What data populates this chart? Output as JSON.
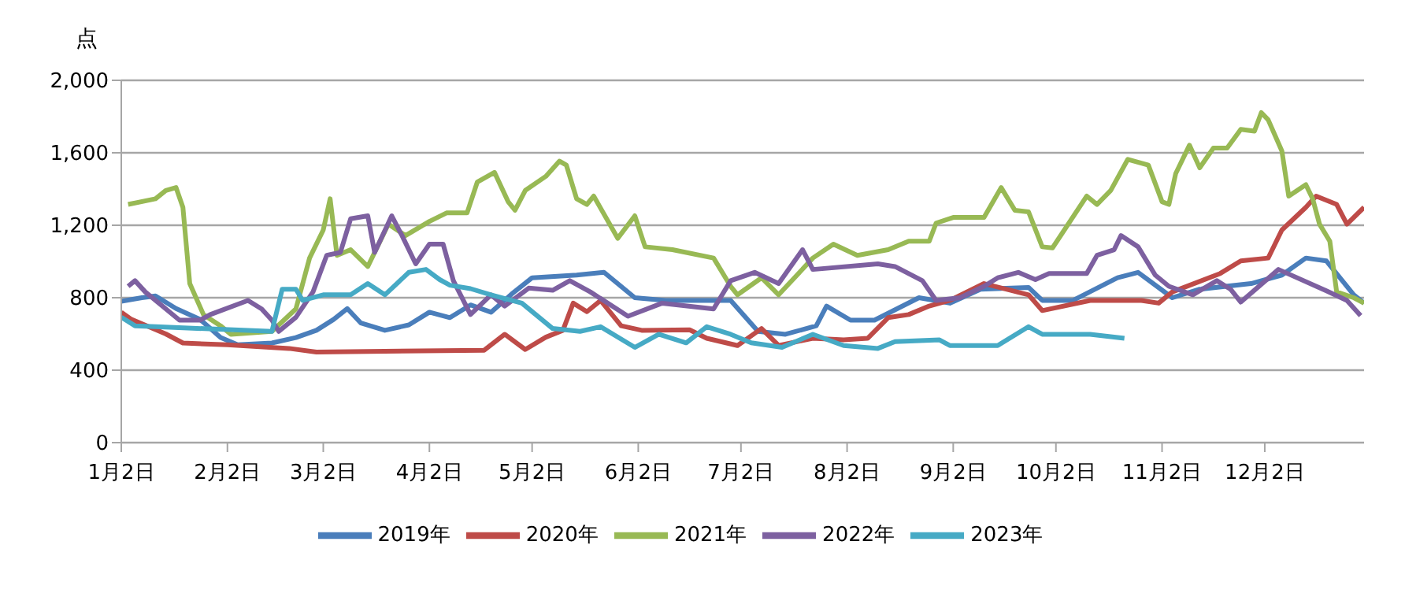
{
  "chart_data": {
    "type": "line",
    "ylabel": "点",
    "xlim": [
      "--01-02",
      "--12-31"
    ],
    "xticks": [
      {
        "value": "--01-02",
        "label": "1月2日"
      },
      {
        "value": "--02-02",
        "label": "2月2日"
      },
      {
        "value": "--03-02",
        "label": "3月2日"
      },
      {
        "value": "--04-02",
        "label": "4月2日"
      },
      {
        "value": "--05-02",
        "label": "5月2日"
      },
      {
        "value": "--06-02",
        "label": "6月2日"
      },
      {
        "value": "--07-02",
        "label": "7月2日"
      },
      {
        "value": "--08-02",
        "label": "8月2日"
      },
      {
        "value": "--09-02",
        "label": "9月2日"
      },
      {
        "value": "--10-02",
        "label": "10月2日"
      },
      {
        "value": "--11-02",
        "label": "11月2日"
      },
      {
        "value": "--12-02",
        "label": "12月2日"
      }
    ],
    "ylim": [
      0,
      2000
    ],
    "yticks": [
      0,
      400,
      800,
      {
        "value": 1200,
        "label": "1,200"
      },
      {
        "value": 1600,
        "label": "1,600"
      },
      {
        "value": 2000,
        "label": "2,000"
      }
    ],
    "grid": "y",
    "legend": "bottom",
    "marker": "none",
    "line_style": "solid",
    "series": [
      {
        "name": "2019年",
        "color": "#4a7ebb",
        "x": [
          "--01-02",
          "--01-08",
          "--01-12",
          "--01-18",
          "--01-25",
          "--01-31",
          "--02-05",
          "--02-15",
          "--02-22",
          "--02-28",
          "--03-05",
          "--03-09",
          "--03-13",
          "--03-20",
          "--03-27",
          "--04-02",
          "--04-08",
          "--04-14",
          "--04-20",
          "--04-26",
          "--05-02",
          "--05-15",
          "--05-23",
          "--06-01",
          "--06-10",
          "--06-29",
          "--07-07",
          "--07-15",
          "--07-24",
          "--07-27",
          "--08-03",
          "--08-10",
          "--08-23",
          "--09-01",
          "--09-10",
          "--09-24",
          "--09-28",
          "--10-07",
          "--10-20",
          "--10-26",
          "--11-05",
          "--11-13",
          "--11-28",
          "--12-07",
          "--12-14",
          "--12-20",
          "--12-28",
          "--12-31"
        ],
        "values": [
          780,
          800,
          810,
          740,
          680,
          580,
          540,
          550,
          580,
          620,
          680,
          740,
          660,
          620,
          650,
          720,
          690,
          760,
          720,
          820,
          910,
          925,
          940,
          800,
          785,
          785,
          614,
          598,
          645,
          754,
          676,
          676,
          800,
          770,
          847,
          857,
          785,
          785,
          910,
          940,
          800,
          847,
          878,
          925,
          1019,
          1003,
          816,
          770
        ]
      },
      {
        "name": "2020年",
        "color": "#be4b48",
        "x": [
          "--01-02",
          "--01-05",
          "--01-15",
          "--01-20",
          "--02-02",
          "--02-20",
          "--02-28",
          "--04-18",
          "--04-24",
          "--04-30",
          "--05-06",
          "--05-11",
          "--05-14",
          "--05-18",
          "--05-22",
          "--05-28",
          "--06-03",
          "--06-17",
          "--06-22",
          "--07-01",
          "--07-08",
          "--07-13",
          "--07-23",
          "--08-01",
          "--08-08",
          "--08-14",
          "--08-20",
          "--08-26",
          "--09-01",
          "--09-11",
          "--09-24",
          "--09-28",
          "--10-12",
          "--10-27",
          "--11-01",
          "--11-05",
          "--11-19",
          "--11-25",
          "--12-03",
          "--12-07",
          "--12-14",
          "--12-17",
          "--12-23",
          "--12-26",
          "--12-31"
        ],
        "values": [
          720,
          680,
          600,
          550,
          540,
          520,
          500,
          510,
          598,
          514,
          582,
          620,
          770,
          723,
          785,
          645,
          620,
          623,
          576,
          536,
          630,
          536,
          576,
          567,
          576,
          690,
          707,
          754,
          785,
          878,
          816,
          729,
          785,
          785,
          770,
          832,
          934,
          1003,
          1019,
          1174,
          1299,
          1361,
          1315,
          1206,
          1299
        ]
      },
      {
        "name": "2021年",
        "color": "#98b954",
        "x": [
          "--01-04",
          "--01-12",
          "--01-15",
          "--01-18",
          "--01-20",
          "--01-22",
          "--01-26",
          "--01-31",
          "--02-03",
          "--02-15",
          "--02-22",
          "--02-26",
          "--03-02",
          "--03-04",
          "--03-06",
          "--03-10",
          "--03-15",
          "--03-21",
          "--03-26",
          "--04-02",
          "--04-07",
          "--04-13",
          "--04-16",
          "--04-21",
          "--04-25",
          "--04-27",
          "--04-30",
          "--05-06",
          "--05-10",
          "--05-12",
          "--05-15",
          "--05-18",
          "--05-20",
          "--05-27",
          "--06-01",
          "--06-04",
          "--06-12",
          "--06-24",
          "--06-29",
          "--07-01",
          "--07-08",
          "--07-13",
          "--07-23",
          "--07-29",
          "--08-05",
          "--08-14",
          "--08-20",
          "--08-26",
          "--08-28",
          "--09-02",
          "--09-11",
          "--09-16",
          "--09-20",
          "--09-24",
          "--09-28",
          "--10-01",
          "--10-11",
          "--10-14",
          "--10-18",
          "--10-23",
          "--10-29",
          "--11-02",
          "--11-04",
          "--11-06",
          "--11-10",
          "--11-13",
          "--11-17",
          "--11-21",
          "--11-25",
          "--11-29",
          "--12-01",
          "--12-03",
          "--12-07",
          "--12-09",
          "--12-14",
          "--12-16",
          "--12-18",
          "--12-21",
          "--12-23",
          "--12-28",
          "--12-31"
        ],
        "values": [
          1315,
          1346,
          1392,
          1408,
          1299,
          878,
          707,
          645,
          598,
          614,
          738,
          1019,
          1174,
          1346,
          1034,
          1065,
          972,
          1206,
          1143,
          1221,
          1268,
          1268,
          1439,
          1492,
          1330,
          1283,
          1392,
          1470,
          1554,
          1532,
          1346,
          1315,
          1361,
          1128,
          1252,
          1081,
          1065,
          1019,
          863,
          816,
          910,
          816,
          1019,
          1096,
          1034,
          1065,
          1112,
          1112,
          1212,
          1243,
          1243,
          1408,
          1283,
          1274,
          1081,
          1075,
          1361,
          1315,
          1392,
          1564,
          1532,
          1330,
          1315,
          1486,
          1642,
          1517,
          1626,
          1626,
          1729,
          1720,
          1822,
          1782,
          1610,
          1361,
          1424,
          1346,
          1206,
          1112,
          832,
          800,
          770
        ]
      },
      {
        "name": "2022年",
        "color": "#7d60a0",
        "x": [
          "--01-04",
          "--01-06",
          "--01-09",
          "--01-16",
          "--01-19",
          "--01-25",
          "--01-28",
          "--02-08",
          "--02-12",
          "--02-15",
          "--02-17",
          "--02-22",
          "--02-27",
          "--03-03",
          "--03-07",
          "--03-10",
          "--03-15",
          "--03-17",
          "--03-22",
          "--03-25",
          "--03-29",
          "--04-02",
          "--04-06",
          "--04-09",
          "--04-14",
          "--04-20",
          "--04-24",
          "--05-01",
          "--05-08",
          "--05-13",
          "--05-19",
          "--05-30",
          "--06-09",
          "--06-24",
          "--06-29",
          "--07-06",
          "--07-13",
          "--07-20",
          "--07-23",
          "--08-11",
          "--08-16",
          "--08-24",
          "--08-28",
          "--09-04",
          "--09-11",
          "--09-15",
          "--09-21",
          "--09-26",
          "--09-30",
          "--10-11",
          "--10-14",
          "--10-19",
          "--10-21",
          "--10-26",
          "--10-31",
          "--11-04",
          "--11-11",
          "--11-18",
          "--11-22",
          "--11-25",
          "--12-06",
          "--12-20",
          "--12-26",
          "--12-30"
        ],
        "values": [
          863,
          894,
          832,
          723,
          676,
          676,
          707,
          785,
          738,
          676,
          614,
          692,
          832,
          1034,
          1050,
          1236,
          1252,
          1050,
          1252,
          1143,
          987,
          1096,
          1096,
          894,
          707,
          816,
          754,
          853,
          841,
          894,
          832,
          698,
          770,
          738,
          894,
          940,
          878,
          1065,
          956,
          987,
          972,
          894,
          785,
          800,
          863,
          910,
          940,
          900,
          934,
          934,
          1034,
          1065,
          1143,
          1081,
          925,
          863,
          816,
          894,
          847,
          776,
          956,
          838,
          785,
          701
        ]
      },
      {
        "name": "2023年",
        "color": "#46aac5",
        "x": [
          "--01-02",
          "--01-06",
          "--01-12",
          "--02-15",
          "--02-18",
          "--02-22",
          "--02-24",
          "--03-02",
          "--03-10",
          "--03-15",
          "--03-20",
          "--03-27",
          "--04-01",
          "--04-05",
          "--04-08",
          "--04-14",
          "--04-20",
          "--04-29",
          "--05-08",
          "--05-16",
          "--05-22",
          "--06-01",
          "--06-08",
          "--06-16",
          "--06-22",
          "--06-29",
          "--07-05",
          "--07-14",
          "--07-23",
          "--08-01",
          "--08-11",
          "--08-16",
          "--08-29",
          "--09-01",
          "--09-15",
          "--09-24",
          "--09-28",
          "--10-12",
          "--10-22"
        ],
        "values": [
          692,
          645,
          640,
          614,
          847,
          847,
          785,
          816,
          816,
          878,
          816,
          940,
          956,
          900,
          869,
          850,
          816,
          770,
          630,
          614,
          640,
          526,
          598,
          551,
          640,
          598,
          551,
          526,
          598,
          536,
          520,
          558,
          567,
          536,
          536,
          640,
          598,
          598,
          576
        ]
      }
    ]
  }
}
